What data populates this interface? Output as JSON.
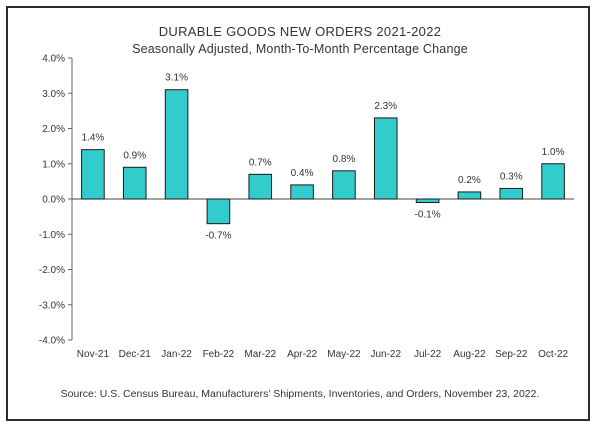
{
  "chart_data": {
    "type": "bar",
    "title": "DURABLE GOODS NEW ORDERS 2021-2022",
    "subtitle": "Seasonally Adjusted,  Month-To-Month Percentage Change",
    "categories": [
      "Nov-21",
      "Dec-21",
      "Jan-22",
      "Feb-22",
      "Mar-22",
      "Apr-22",
      "May-22",
      "Jun-22",
      "Jul-22",
      "Aug-22",
      "Sep-22",
      "Oct-22"
    ],
    "values": [
      1.4,
      0.9,
      3.1,
      -0.7,
      0.7,
      0.4,
      0.8,
      2.3,
      -0.1,
      0.2,
      0.3,
      1.0
    ],
    "data_labels": [
      "1.4%",
      "0.9%",
      "3.1%",
      "-0.7%",
      "0.7%",
      "0.4%",
      "0.8%",
      "2.3%",
      "-0.1%",
      "0.2%",
      "0.3%",
      "1.0%"
    ],
    "ylim": [
      -4.0,
      4.0
    ],
    "yticks": [
      4.0,
      3.0,
      2.0,
      1.0,
      0.0,
      -1.0,
      -2.0,
      -3.0,
      -4.0
    ],
    "ytick_labels": [
      "4.0%",
      "3.0%",
      "2.0%",
      "1.0%",
      "0.0%",
      "-1.0%",
      "-2.0%",
      "-3.0%",
      "-4.0%"
    ],
    "xlabel": "",
    "ylabel": "",
    "grid": false,
    "bar_color": "#33CCCC",
    "source": "Source: U.S. Census Bureau, Manufacturers’ Shipments, Inventories, and Orders, November 23, 2022."
  }
}
